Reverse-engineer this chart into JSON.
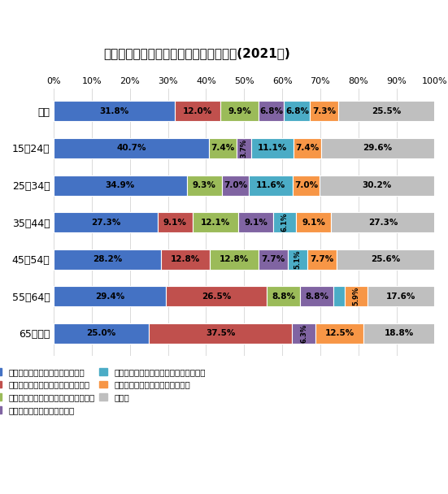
{
  "title": "完全失業者の仕事につけない理由別割合(2021年)",
  "categories": [
    "全体",
    "15～24歳",
    "25～34歳",
    "35～44歳",
    "45～54歳",
    "55～64歳",
    "65歳以上"
  ],
  "series_labels": [
    "希望する種類・内容の仕事が無い",
    "求人の年齢と自分の年齢が合わない",
    "勤務時間・休日などが希望と合わない",
    "賃金・給料が希望と合わない",
    "自分の技術や技能が求人要件に満たない",
    "条件にこだわらないが仕事が無い",
    "その他"
  ],
  "colors": [
    "#4472c4",
    "#c0504d",
    "#9bbb59",
    "#8064a2",
    "#4bacc6",
    "#f79646",
    "#bfbfbf"
  ],
  "data": [
    [
      31.8,
      12.0,
      9.9,
      6.8,
      6.8,
      7.3,
      25.5
    ],
    [
      40.7,
      0.0,
      7.4,
      3.7,
      11.1,
      7.4,
      29.6
    ],
    [
      34.9,
      0.0,
      9.3,
      7.0,
      11.6,
      7.0,
      30.2
    ],
    [
      27.3,
      9.1,
      12.1,
      9.1,
      6.1,
      9.1,
      27.3
    ],
    [
      28.2,
      12.8,
      12.8,
      7.7,
      5.1,
      7.7,
      25.6
    ],
    [
      29.4,
      26.5,
      8.8,
      8.8,
      2.9,
      5.9,
      17.6
    ],
    [
      25.0,
      37.5,
      0.0,
      6.3,
      0.0,
      12.5,
      18.8
    ]
  ],
  "xlim": [
    0,
    100
  ],
  "xticks": [
    0,
    10,
    20,
    30,
    40,
    50,
    60,
    70,
    80,
    90,
    100
  ],
  "xticklabels": [
    "0%",
    "10%",
    "20%",
    "30%",
    "40%",
    "50%",
    "60%",
    "70%",
    "80%",
    "90%",
    "100%"
  ],
  "bar_height": 0.55,
  "background_color": "#ffffff",
  "text_threshold": 3.0,
  "rotate_threshold": 6.5,
  "figsize": [
    5.51,
    6.08
  ],
  "dpi": 100
}
